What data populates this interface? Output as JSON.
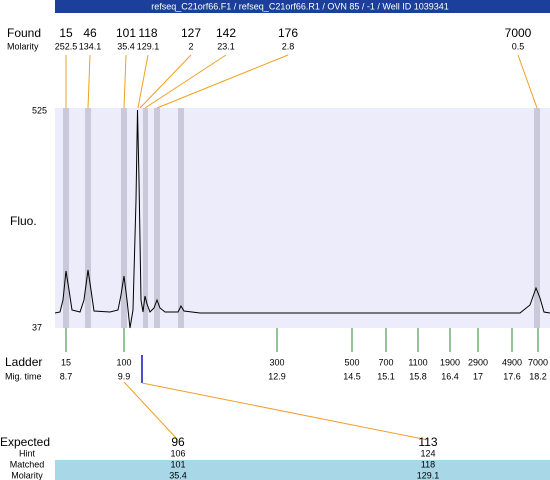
{
  "header": {
    "title": "refseq_C21orf66.F1 / refseq_C21orf66.R1 / OVN 85 / -1 / Well ID 1039341"
  },
  "found": {
    "label": "Found",
    "sublabel": "Molarity",
    "peaks": [
      {
        "size": "15",
        "molarity": "252.5"
      },
      {
        "size": "46",
        "molarity": "134.1"
      },
      {
        "size": "101",
        "molarity": "35.4"
      },
      {
        "size": "118",
        "molarity": "129.1"
      },
      {
        "size": "127",
        "molarity": "2"
      },
      {
        "size": "142",
        "molarity": "23.1"
      },
      {
        "size": "176",
        "molarity": "2.8"
      },
      {
        "size": "7000",
        "molarity": "0.5"
      }
    ]
  },
  "plot": {
    "y_label": "Fluo.",
    "y_max": "525",
    "y_min": "37"
  },
  "ladder": {
    "label": "Ladder",
    "sublabel": "Mig. time",
    "items": [
      {
        "size": "15",
        "time": "8.7"
      },
      {
        "size": "100",
        "time": "9.9"
      },
      {
        "size": "300",
        "time": "12.9"
      },
      {
        "size": "500",
        "time": "14.5"
      },
      {
        "size": "700",
        "time": "15.1"
      },
      {
        "size": "1100",
        "time": "15.8"
      },
      {
        "size": "1900",
        "time": "16.4"
      },
      {
        "size": "2900",
        "time": "17"
      },
      {
        "size": "4900",
        "time": "17.6"
      },
      {
        "size": "7000",
        "time": "18.2"
      }
    ]
  },
  "expected": {
    "labels": [
      "Expected",
      "Hint",
      "Matched",
      "Molarity"
    ],
    "items": [
      {
        "expected": "96",
        "hint": "106",
        "matched": "101",
        "molarity": "35.4"
      },
      {
        "expected": "113",
        "hint": "124",
        "matched": "118",
        "molarity": "129.1"
      }
    ]
  }
}
